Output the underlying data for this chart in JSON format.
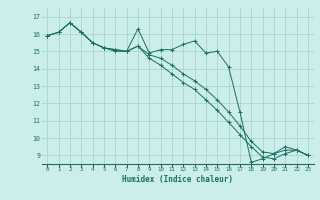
{
  "xlabel": "Humidex (Indice chaleur)",
  "ylabel": "",
  "bg_color": "#cceeea",
  "grid_color": "#aad4ce",
  "line_color": "#1a6e64",
  "xlim": [
    -0.5,
    23.5
  ],
  "ylim": [
    8.5,
    17.5
  ],
  "yticks": [
    9,
    10,
    11,
    12,
    13,
    14,
    15,
    16,
    17
  ],
  "xticks": [
    0,
    1,
    2,
    3,
    4,
    5,
    6,
    7,
    8,
    9,
    10,
    11,
    12,
    13,
    14,
    15,
    16,
    17,
    18,
    19,
    20,
    21,
    22,
    23
  ],
  "series": [
    [
      15.9,
      16.1,
      16.65,
      16.1,
      15.5,
      15.2,
      15.0,
      15.0,
      16.3,
      14.9,
      15.1,
      15.1,
      15.4,
      15.6,
      14.9,
      15.0,
      14.1,
      11.5,
      8.6,
      8.8,
      9.1,
      9.5,
      9.3,
      9.0
    ],
    [
      15.9,
      16.1,
      16.65,
      16.1,
      15.5,
      15.2,
      15.1,
      15.0,
      15.3,
      14.8,
      14.6,
      14.2,
      13.7,
      13.3,
      12.8,
      12.2,
      11.5,
      10.7,
      9.8,
      9.2,
      9.1,
      9.3,
      9.3,
      9.0
    ],
    [
      15.9,
      16.1,
      16.65,
      16.1,
      15.5,
      15.2,
      15.1,
      15.0,
      15.3,
      14.6,
      14.2,
      13.7,
      13.2,
      12.8,
      12.2,
      11.6,
      10.9,
      10.2,
      9.5,
      8.9,
      8.8,
      9.1,
      9.3,
      9.0
    ]
  ]
}
